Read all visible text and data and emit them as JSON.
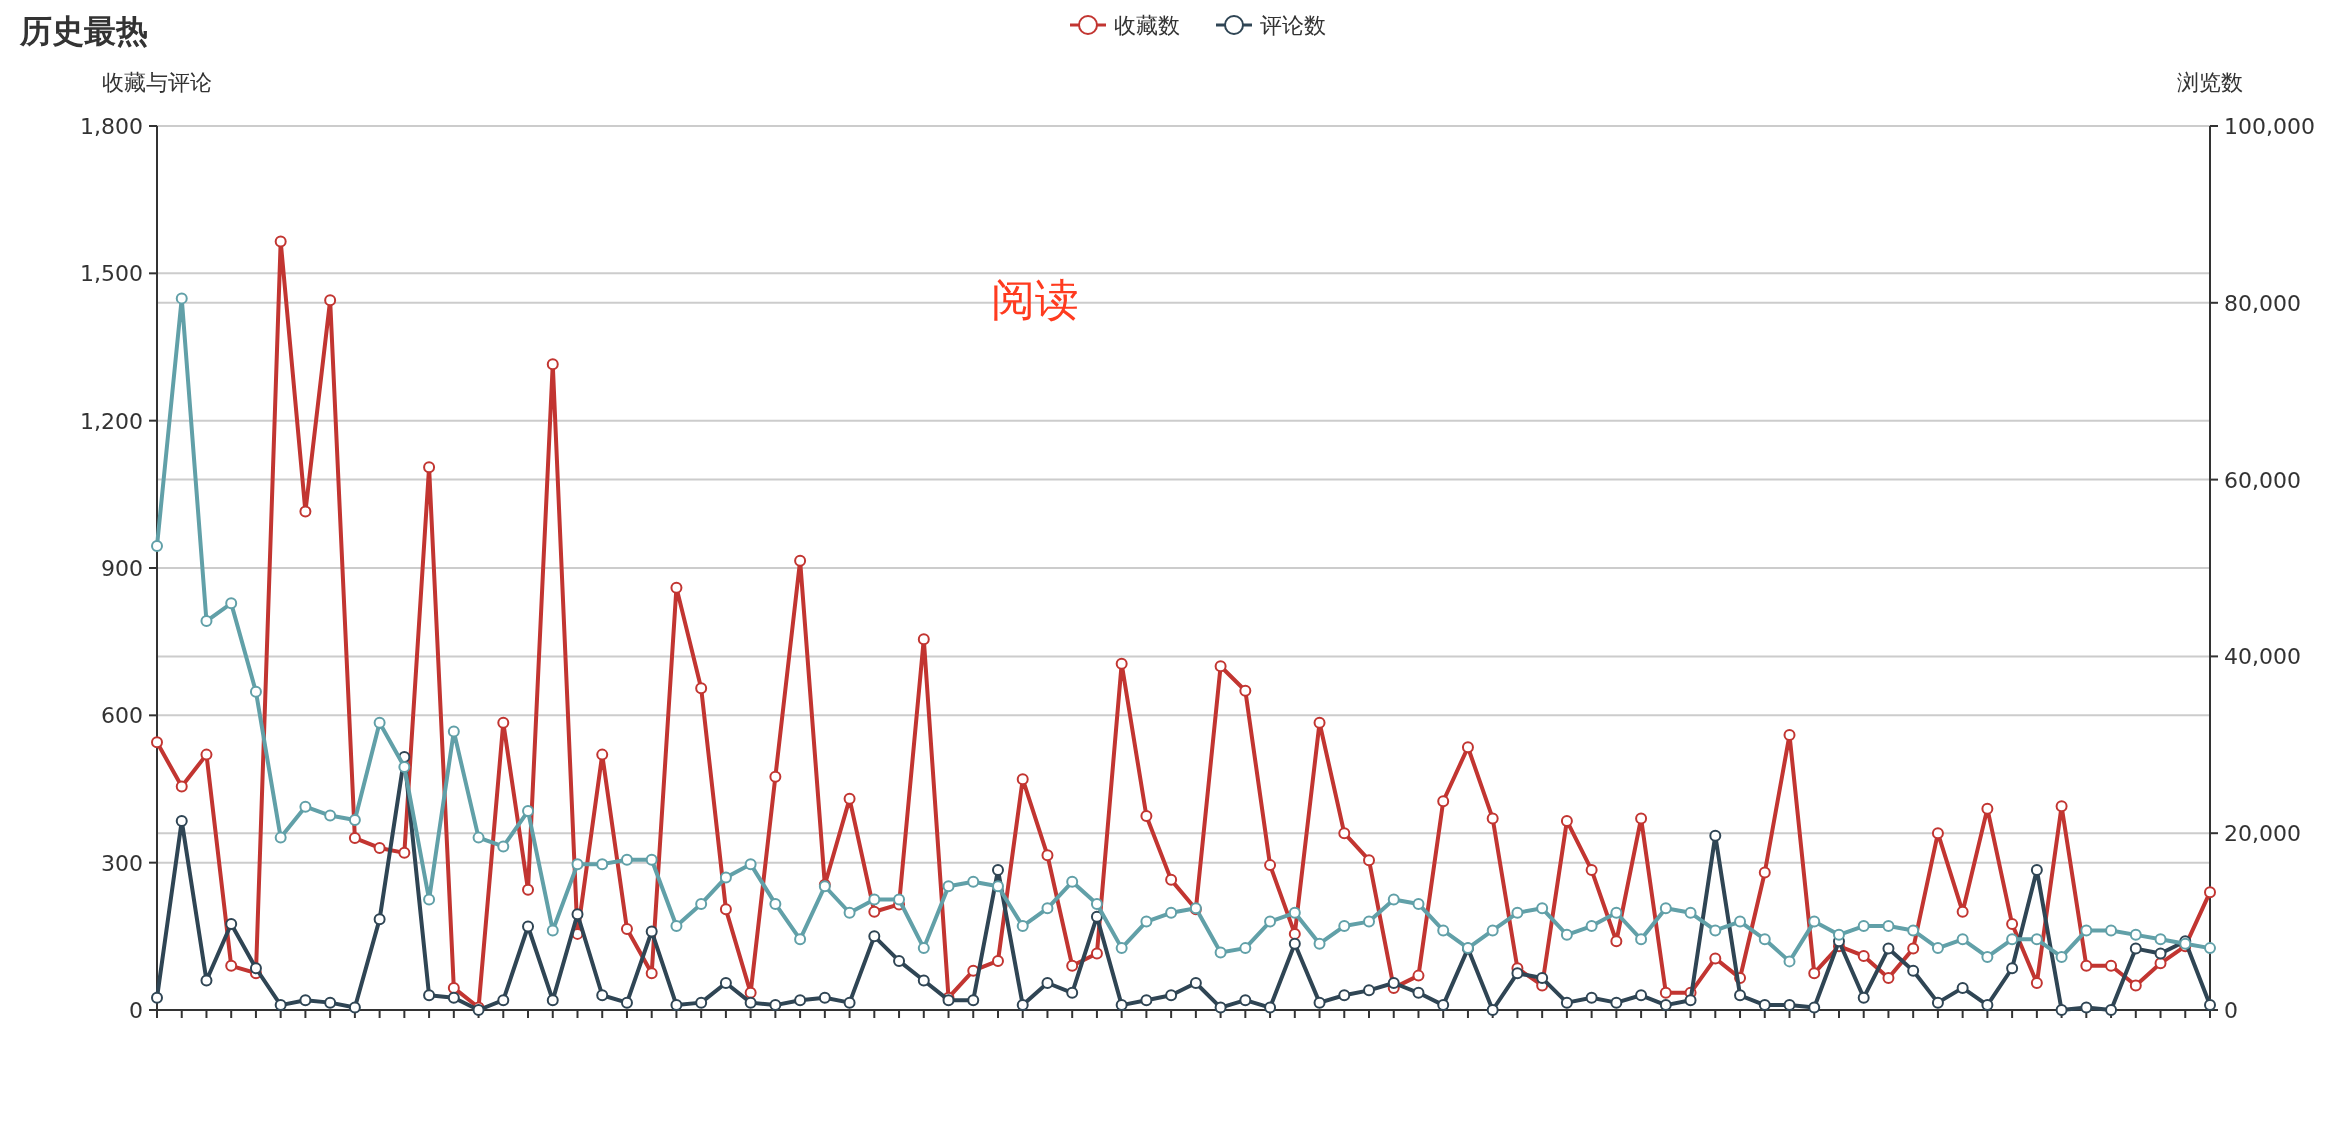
{
  "chart_data": {
    "type": "line",
    "title": "历史最热",
    "ylabel": "收藏与评论",
    "y2label": "浏览数",
    "categories": [
      null,
      null,
      null,
      null,
      null,
      null,
      null,
      null,
      null,
      null,
      null,
      null,
      null,
      null,
      null,
      null,
      null,
      null,
      null,
      null,
      null,
      null,
      null,
      null,
      null,
      null,
      null,
      null,
      null,
      null,
      null,
      null,
      null,
      null,
      null,
      null,
      null,
      null,
      null,
      null,
      null,
      null,
      null,
      null,
      null,
      null,
      null,
      null,
      null,
      null,
      null,
      null,
      null,
      null,
      null,
      null,
      null,
      null,
      null,
      null,
      null,
      null,
      null,
      null,
      null,
      null,
      null,
      null,
      null,
      null,
      null,
      null,
      null,
      null,
      null,
      null,
      null,
      null,
      null,
      null,
      null,
      null,
      null,
      null
    ],
    "series": [
      {
        "name": "收藏数",
        "color": "#c23531",
        "values": [
          545,
          455,
          520,
          90,
          75,
          1565,
          1015,
          1445,
          350,
          330,
          320,
          1105,
          45,
          5,
          585,
          245,
          1315,
          155,
          520,
          165,
          75,
          860,
          655,
          205,
          35,
          475,
          915,
          255,
          430,
          200,
          215,
          755,
          25,
          80,
          100,
          470,
          315,
          90,
          115,
          705,
          395,
          265,
          205,
          700,
          650,
          295,
          155,
          585,
          360,
          305,
          45,
          70,
          425,
          535,
          390,
          85,
          50,
          385,
          285,
          140,
          390,
          35,
          35,
          105,
          65,
          280,
          560,
          75,
          130,
          110,
          65,
          125,
          360,
          200,
          410,
          175,
          55,
          415,
          90,
          90,
          50,
          95,
          130,
          240
        ]
      },
      {
        "name": "评论数",
        "color": "#2f4554",
        "values": [
          25,
          385,
          60,
          175,
          85,
          10,
          20,
          15,
          5,
          185,
          515,
          30,
          25,
          0,
          20,
          170,
          20,
          195,
          30,
          15,
          160,
          10,
          15,
          55,
          15,
          10,
          20,
          25,
          15,
          150,
          100,
          60,
          20,
          20,
          285,
          10,
          55,
          35,
          190,
          10,
          20,
          30,
          55,
          5,
          20,
          5,
          135,
          15,
          30,
          40,
          55,
          35,
          10,
          125,
          0,
          75,
          65,
          15,
          25,
          15,
          30,
          10,
          20,
          355,
          30,
          10,
          10,
          5,
          140,
          25,
          125,
          80,
          15,
          45,
          10,
          85,
          285,
          0,
          5,
          0,
          125,
          115,
          140,
          10
        ]
      },
      {
        "color": "#61a0a8",
        "axis": "y2",
        "values": [
          52500,
          80500,
          44000,
          46000,
          36000,
          19500,
          23000,
          22000,
          21500,
          32500,
          27500,
          12500,
          31500,
          19500,
          18500,
          22500,
          9000,
          16500,
          16500,
          17000,
          17000,
          9500,
          12000,
          15000,
          16500,
          12000,
          8000,
          14000,
          11000,
          12500,
          12500,
          7000,
          14000,
          14500,
          14000,
          9500,
          11500,
          14500,
          12000,
          7000,
          10000,
          11000,
          11500,
          6500,
          7000,
          10000,
          11000,
          7500,
          9500,
          10000,
          12500,
          12000,
          9000,
          7000,
          9000,
          11000,
          11500,
          8500,
          9500,
          11000,
          8000,
          11500,
          11000,
          9000,
          10000,
          8000,
          5500,
          10000,
          8500,
          9500,
          9500,
          9000,
          7000,
          8000,
          6000,
          8000,
          8000,
          6000,
          9000,
          9000,
          8500,
          8000,
          7500,
          7000
        ]
      }
    ],
    "ylim": [
      0,
      1800
    ],
    "yticks": [
      0,
      300,
      600,
      900,
      {
        "value": 1200,
        "label": "1,200"
      },
      {
        "value": 1500,
        "label": "1,500"
      },
      {
        "value": 1800,
        "label": "1,800"
      }
    ],
    "y2lim": [
      0,
      100000
    ],
    "y2ticks": [
      0,
      {
        "value": 20000,
        "label": "20,000"
      },
      {
        "value": 40000,
        "label": "40,000"
      },
      {
        "value": 60000,
        "label": "60,000"
      },
      {
        "value": 80000,
        "label": "80,000"
      },
      {
        "value": 100000,
        "label": "100,000"
      }
    ],
    "annotations": [
      "阅读"
    ],
    "grid": true,
    "legend": "top",
    "marker": "circle",
    "line_style": "solid"
  }
}
